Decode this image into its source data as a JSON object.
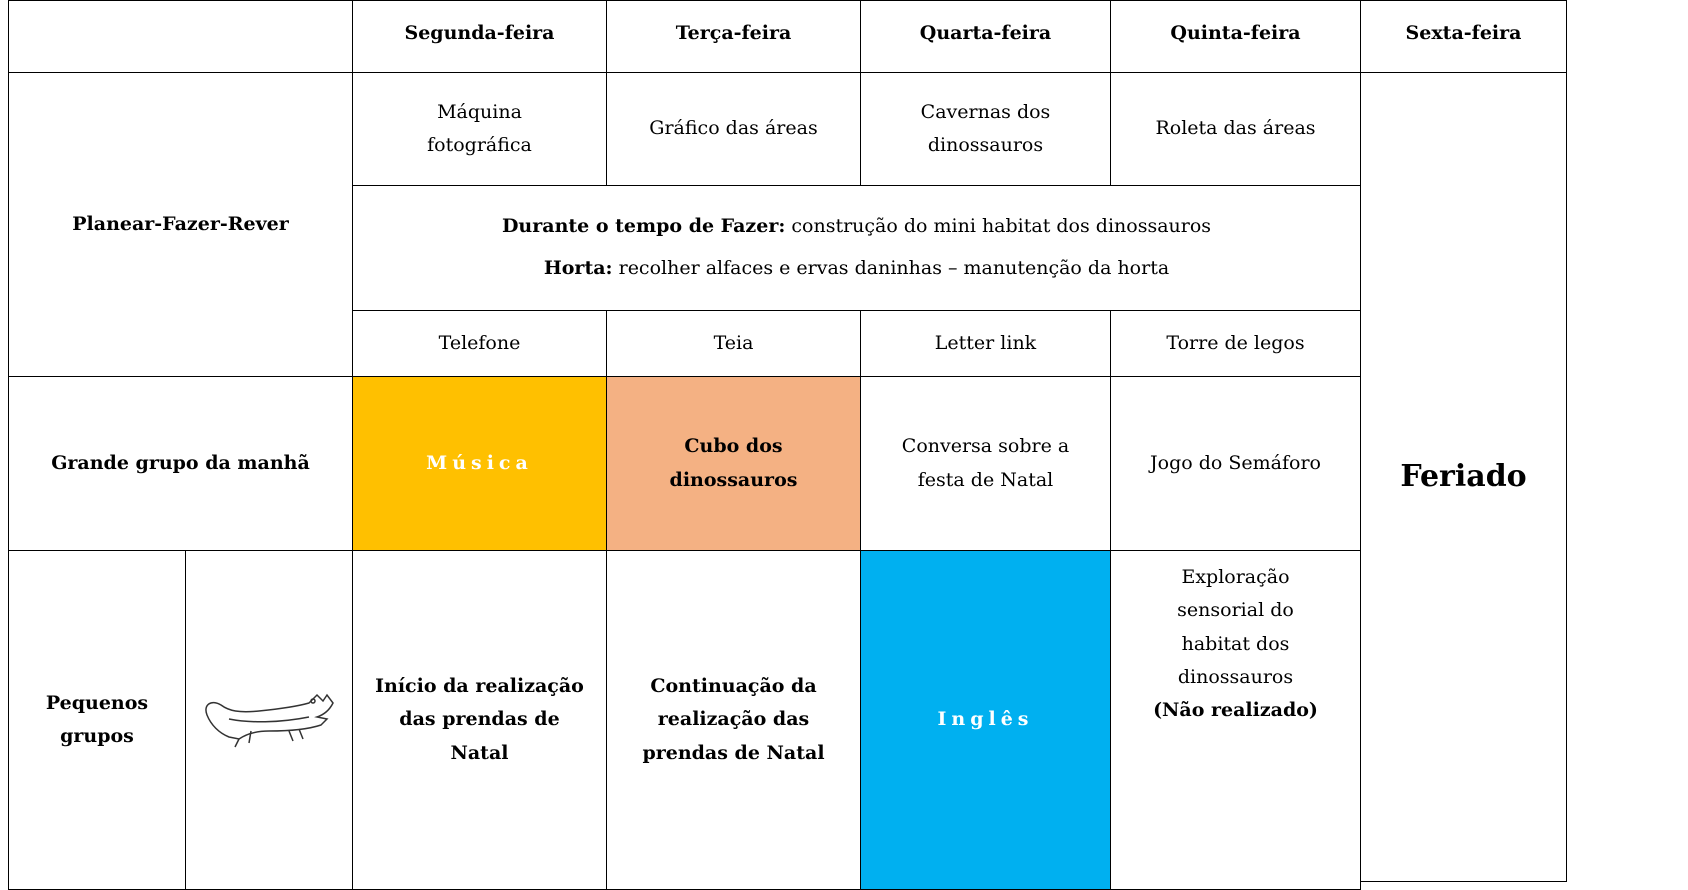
{
  "header": {
    "days": [
      "Segunda-feira",
      "Terça-feira",
      "Quarta-feira",
      "Quinta-feira",
      "Sexta-feira"
    ]
  },
  "planear": {
    "label": "Planear-Fazer-Rever",
    "activities": [
      "Máquina fotográfica",
      "Gráfico das áreas",
      "Cavernas dos dinossauros",
      "Roleta das áreas"
    ],
    "durante": {
      "label": "Durante o tempo de Fazer:",
      "text": "construção do mini habitat dos dinossauros"
    },
    "horta": {
      "label": "Horta:",
      "text": "recolher alfaces e ervas daninhas – manutenção da horta"
    },
    "reviews": [
      "Telefone",
      "Teia",
      "Letter link",
      "Torre de legos"
    ]
  },
  "grande_grupo": {
    "label": "Grande grupo da manhã",
    "activities": [
      "Música",
      "Cubo dos dinossauros",
      "Conversa sobre a festa de Natal",
      "Jogo do Semáforo"
    ]
  },
  "pequenos_grupos": {
    "label": "Pequenos grupos",
    "activities": [
      "Início da realização das prendas de Natal",
      "Continuação da realização das prendas de Natal",
      "Inglês",
      "Exploração sensorial do habitat dos dinossauros"
    ],
    "note": "(Não realizado)"
  },
  "feriado": "Feriado"
}
